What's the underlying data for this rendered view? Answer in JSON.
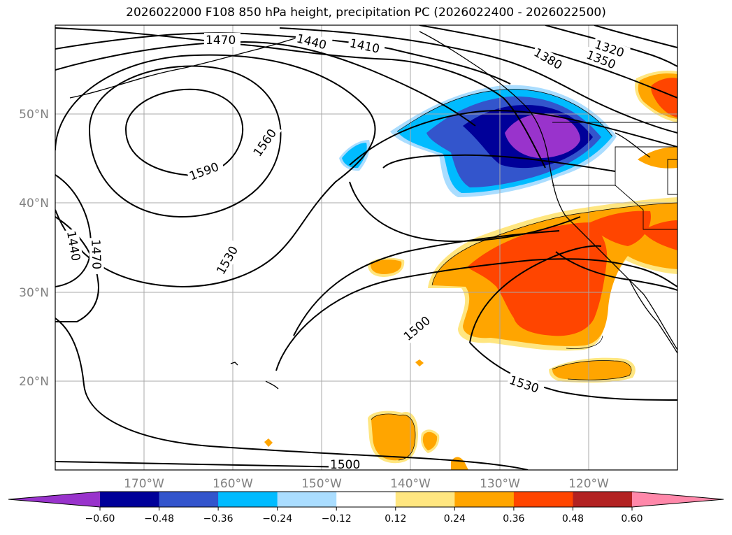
{
  "title": "2026022000 F108 850 hPa height, precipitation PC (2026022400 - 2026022500)",
  "map": {
    "lat_labels": [
      "50°N",
      "40°N",
      "30°N",
      "20°N"
    ],
    "lon_labels": [
      "170°W",
      "160°W",
      "150°W",
      "140°W",
      "130°W",
      "120°W"
    ],
    "contour_labels": [
      "1470",
      "1440",
      "1410",
      "1380",
      "1350",
      "1320",
      "1560",
      "1590",
      "1530",
      "1440",
      "1470",
      "1500",
      "1530",
      "1500"
    ]
  },
  "colorbar": {
    "ticks": [
      "−0.60",
      "−0.48",
      "−0.36",
      "−0.24",
      "−0.12",
      "0.12",
      "0.24",
      "0.36",
      "0.48",
      "0.60"
    ],
    "colors": [
      "#9933cc",
      "#000099",
      "#3355cc",
      "#00bbff",
      "#aaddff",
      "#ffffff",
      "#ffe680",
      "#ffa500",
      "#ff4500",
      "#b22222",
      "#ff88aa"
    ]
  },
  "palette": {
    "neg_purple": "#9933cc",
    "neg_navy": "#000099",
    "neg_blue": "#3355cc",
    "neg_cyan": "#00bbff",
    "neg_light": "#aaddff",
    "pos_yellow": "#ffe680",
    "pos_orange": "#ffa500",
    "pos_red": "#ff4500"
  }
}
